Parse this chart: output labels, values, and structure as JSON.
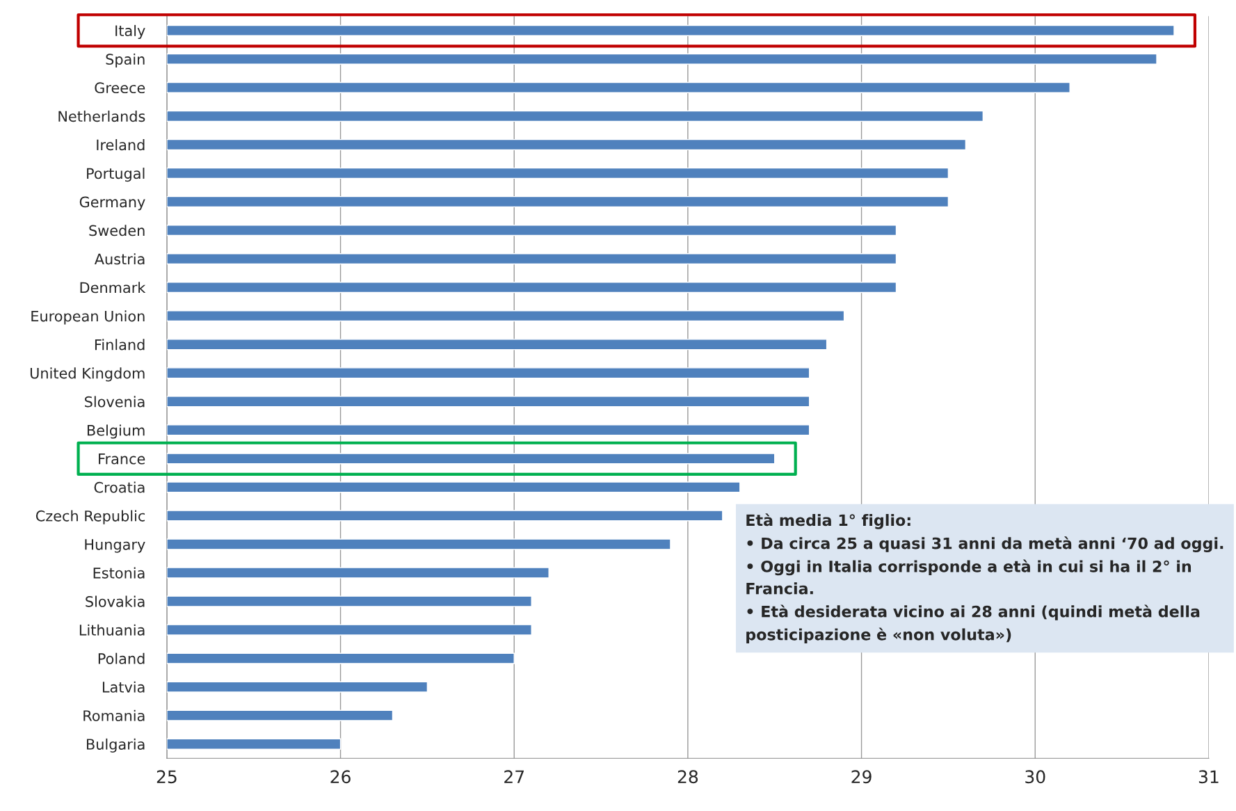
{
  "chart_data": {
    "type": "bar",
    "orientation": "horizontal",
    "categories": [
      "Italy",
      "Spain",
      "Greece",
      "Netherlands",
      "Ireland",
      "Portugal",
      "Germany",
      "Sweden",
      "Austria",
      "Denmark",
      "European Union",
      "Finland",
      "United Kingdom",
      "Slovenia",
      "Belgium",
      "France",
      "Croatia",
      "Czech Republic",
      "Hungary",
      "Estonia",
      "Slovakia",
      "Lithuania",
      "Poland",
      "Latvia",
      "Romania",
      "Bulgaria"
    ],
    "values": [
      30.8,
      30.7,
      30.2,
      29.7,
      29.6,
      29.5,
      29.5,
      29.2,
      29.2,
      29.2,
      28.9,
      28.8,
      28.7,
      28.7,
      28.7,
      28.5,
      28.3,
      28.2,
      27.9,
      27.2,
      27.1,
      27.1,
      27.0,
      26.5,
      26.3,
      26.0
    ],
    "color": "#4f81bd",
    "xlim": [
      25,
      31
    ],
    "xticks": [
      25,
      26,
      27,
      28,
      29,
      30,
      31
    ],
    "grid": "x",
    "annotations": [
      "Età media 1° figlio:",
      "• Da circa 25 a quasi 31 anni da metà anni ‘70 ad oggi.",
      "• Oggi in Italia corrisponde a età in cui si ha il 2° in Francia.",
      "• Età desiderata vicino ai 28 anni (quindi metà della posticipazione è «non voluta»)"
    ]
  }
}
